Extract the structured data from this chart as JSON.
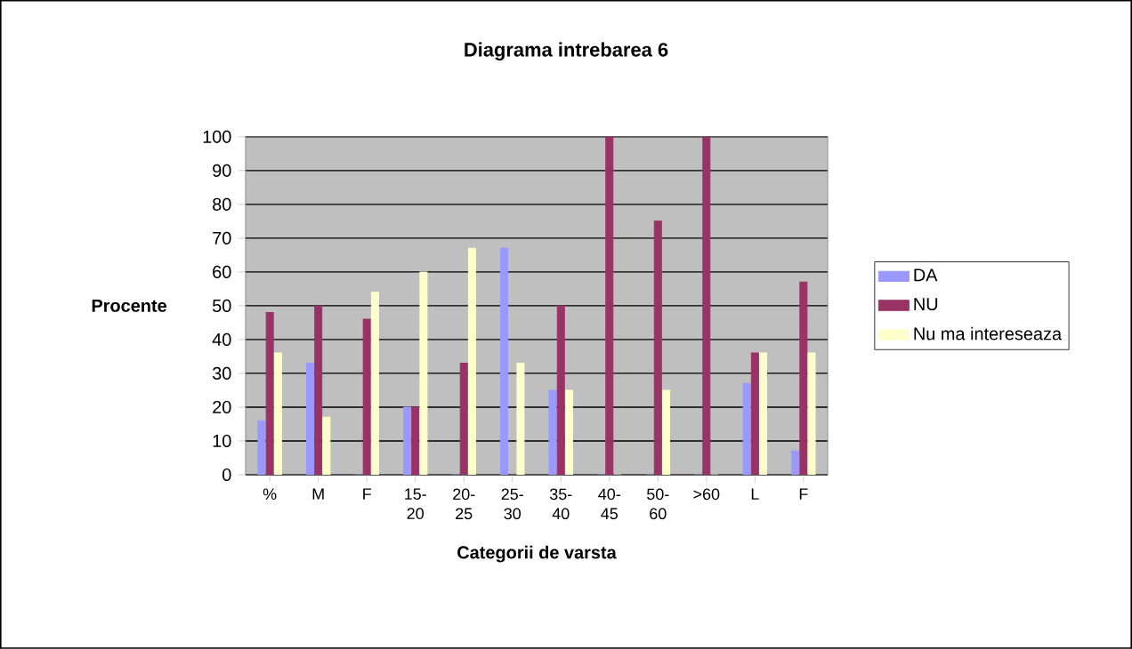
{
  "chart_data": {
    "type": "bar",
    "title": "Diagrama intrebarea 6",
    "xlabel": "Categorii de varsta",
    "ylabel": "Procente",
    "categories": [
      "%",
      "M",
      "F",
      "15- 20",
      "20- 25",
      "25- 30",
      "35- 40",
      "40- 45",
      "50- 60",
      ">60",
      "L",
      "F"
    ],
    "series": [
      {
        "name": "DA",
        "color": "#9999ff",
        "values": [
          16,
          33,
          0,
          20,
          0,
          67,
          25,
          0,
          0,
          0,
          27,
          7
        ]
      },
      {
        "name": "NU",
        "color": "#993366",
        "values": [
          48,
          50,
          46,
          20,
          33,
          0,
          50,
          100,
          75,
          100,
          36,
          57
        ]
      },
      {
        "name": "Nu ma intereseaza",
        "color": "#ffffcc",
        "values": [
          36,
          17,
          54,
          60,
          67,
          33,
          25,
          0,
          25,
          0,
          36,
          36
        ]
      }
    ],
    "ylim": [
      0,
      100
    ],
    "yticks": [
      0,
      10,
      20,
      30,
      40,
      50,
      60,
      70,
      80,
      90,
      100
    ],
    "grid": "y",
    "legend": "right"
  }
}
